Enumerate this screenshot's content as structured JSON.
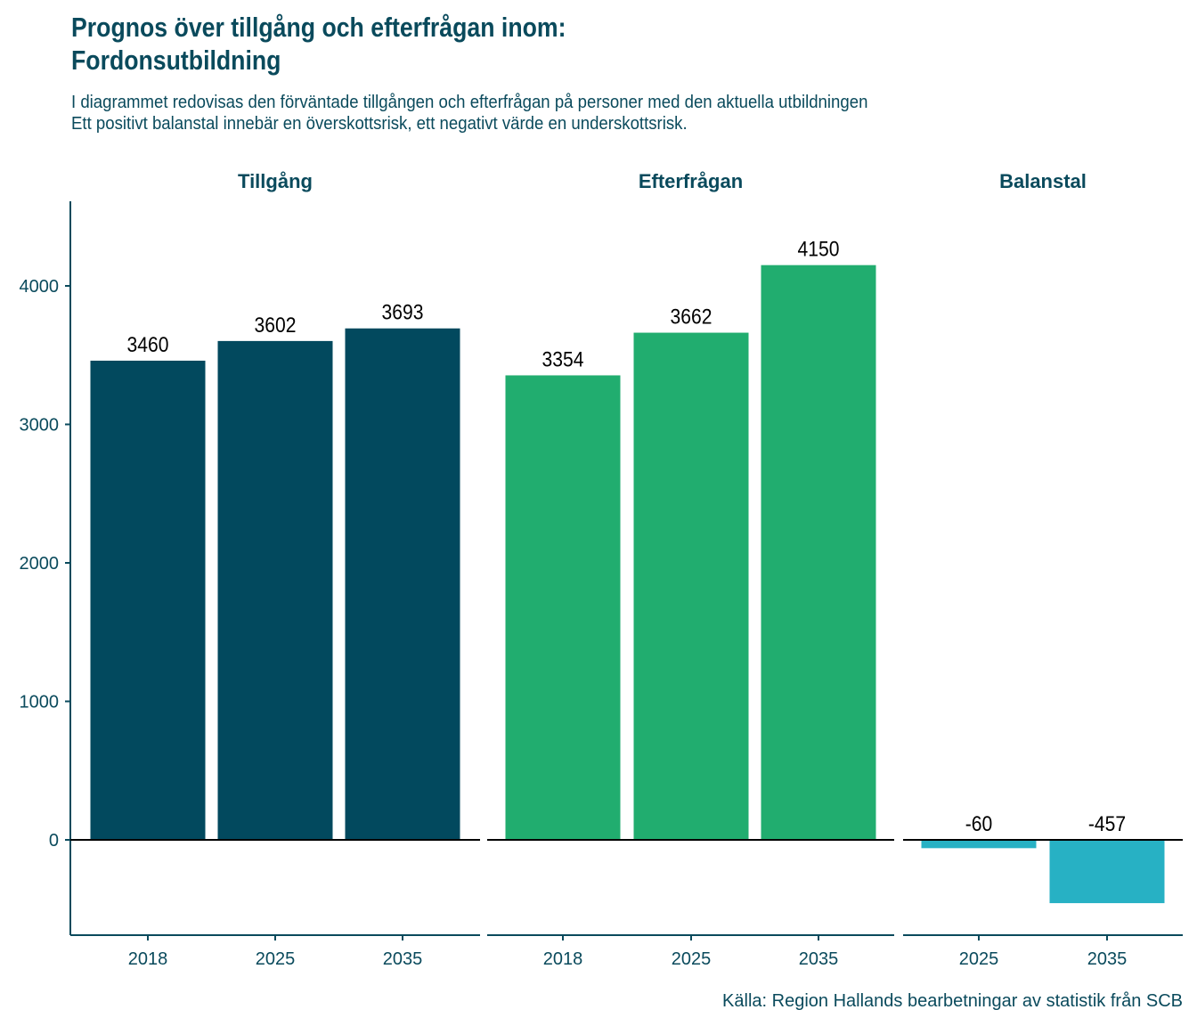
{
  "chart_data": {
    "type": "bar",
    "title": "Prognos över tillgång och efterfrågan inom:",
    "title_line2": "Fordonsutbildning",
    "subtitle_line1": "I diagrammet redovisas den förväntade tillgången och efterfrågan på personer med den aktuella utbildningen",
    "subtitle_line2": "Ett positivt balanstal innebär en överskottsrisk, ett negativt värde en underskottsrisk.",
    "caption": "Källa: Region Hallands bearbetningar av statistik från SCB",
    "ylim": [
      -680,
      4600
    ],
    "yticks": [
      0,
      1000,
      2000,
      3000,
      4000
    ],
    "ytick_labels": [
      "0",
      "1000",
      "2000",
      "3000",
      "4000"
    ],
    "grid": false,
    "facets": [
      {
        "name": "Tillgång",
        "color": "#02495e",
        "categories": [
          "2018",
          "2025",
          "2035"
        ],
        "values": [
          3460,
          3602,
          3693
        ],
        "labels": [
          "3460",
          "3602",
          "3693"
        ]
      },
      {
        "name": "Efterfrågan",
        "color": "#21ad6f",
        "categories": [
          "2018",
          "2025",
          "2035"
        ],
        "values": [
          3354,
          3662,
          4150
        ],
        "labels": [
          "3354",
          "3662",
          "4150"
        ]
      },
      {
        "name": "Balanstal",
        "color": "#27b1c4",
        "categories": [
          "2025",
          "2035"
        ],
        "values": [
          -60,
          -457
        ],
        "labels": [
          "-60",
          "-457"
        ]
      }
    ]
  }
}
